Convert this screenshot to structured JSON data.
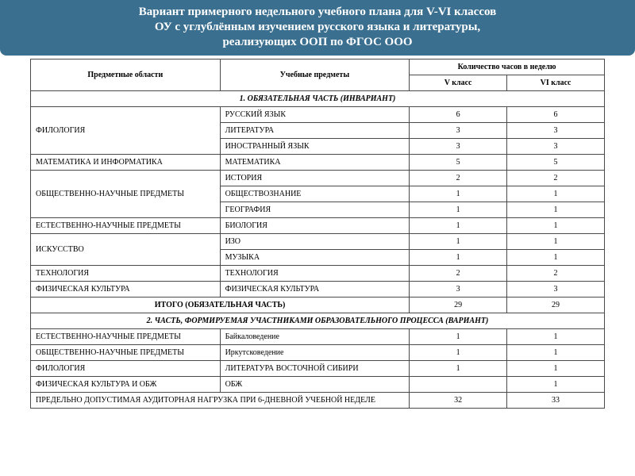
{
  "colors": {
    "header_bg": "#3a6f8f",
    "header_text": "#ffffff",
    "border": "#4a4a4a",
    "body_text": "#000000"
  },
  "typography": {
    "header_fontsize": 15,
    "table_fontsize": 10,
    "font_family": "Times New Roman"
  },
  "title_lines": {
    "l1": "Вариант примерного недельного учебного плана для V-VI классов",
    "l2": "ОУ с углублённым изучением русского языка и литературы,",
    "l3": "реализующих ООП по ФГОС ООО"
  },
  "head": {
    "areas": "Предметные области",
    "subjects": "Учебные предметы",
    "hours": "Количество часов в неделю",
    "c5": "V класс",
    "c6": "VI класс"
  },
  "sections": {
    "s1": "1. ОБЯЗАТЕЛЬНАЯ ЧАСТЬ (ИНВАРИАНТ)",
    "s2": "2. ЧАСТЬ, ФОРМИРУЕМАЯ УЧАСТНИКАМИ ОБРАЗОВАТЕЛЬНОГО ПРОЦЕССА (ВАРИАНТ)"
  },
  "areas": {
    "phil": "ФИЛОЛОГИЯ",
    "math": "МАТЕМАТИКА И ИНФОРМАТИКА",
    "soc": "ОБЩЕСТВЕННО-НАУЧНЫЕ ПРЕДМЕТЫ",
    "nat": "ЕСТЕСТВЕННО-НАУЧНЫЕ ПРЕДМЕТЫ",
    "art": "ИСКУССТВО",
    "tech": "ТЕХНОЛОГИЯ",
    "pe": "ФИЗИЧЕСКАЯ КУЛЬТУРА",
    "pe_obzh": "ФИЗИЧЕСКАЯ КУЛЬТУРА И ОБЖ"
  },
  "rows": {
    "rus": {
      "s": "РУССКИЙ ЯЗЫК",
      "v": "6",
      "vi": "6"
    },
    "lit": {
      "s": "ЛИТЕРАТУРА",
      "v": "3",
      "vi": "3"
    },
    "for": {
      "s": "ИНОСТРАННЫЙ ЯЗЫК",
      "v": "3",
      "vi": "3"
    },
    "math": {
      "s": "МАТЕМАТИКА",
      "v": "5",
      "vi": "5"
    },
    "hist": {
      "s": "ИСТОРИЯ",
      "v": "2",
      "vi": "2"
    },
    "obsh": {
      "s": "ОБЩЕСТВОЗНАНИЕ",
      "v": "1",
      "vi": "1"
    },
    "geo": {
      "s": "ГЕОГРАФИЯ",
      "v": "1",
      "vi": "1"
    },
    "bio": {
      "s": "БИОЛОГИЯ",
      "v": "1",
      "vi": "1"
    },
    "izo": {
      "s": "ИЗО",
      "v": "1",
      "vi": "1"
    },
    "mus": {
      "s": "МУЗЫКА",
      "v": "1",
      "vi": "1"
    },
    "tech": {
      "s": "ТЕХНОЛОГИЯ",
      "v": "2",
      "vi": "2"
    },
    "pe": {
      "s": "ФИЗИЧЕСКАЯ КУЛЬТУРА",
      "v": "3",
      "vi": "3"
    },
    "total": {
      "s": "ИТОГО (ОБЯЗАТЕЛЬНАЯ ЧАСТЬ)",
      "v": "29",
      "vi": "29"
    },
    "baik": {
      "s": "Байкаловедение",
      "v": "1",
      "vi": "1"
    },
    "irk": {
      "s": "Иркутсковедение",
      "v": "1",
      "vi": "1"
    },
    "litvs": {
      "s": "ЛИТЕРАТУРА ВОСТОЧНОЙ СИБИРИ",
      "v": "1",
      "vi": "1"
    },
    "obzh": {
      "s": "ОБЖ",
      "v": "",
      "vi": "1"
    },
    "limit": {
      "s": "ПРЕДЕЛЬНО ДОПУСТИМАЯ АУДИТОРНАЯ НАГРУЗКА ПРИ 6-ДНЕВНОЙ УЧЕБНОЙ НЕДЕЛЕ",
      "v": "32",
      "vi": "33"
    }
  }
}
